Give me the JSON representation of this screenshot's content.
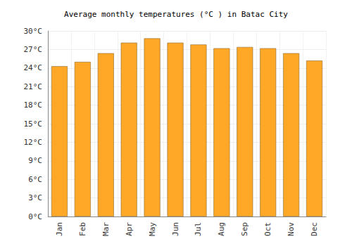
{
  "chart_data": {
    "type": "bar",
    "title": "Average monthly temperatures (°C ) in Batac City",
    "categories": [
      "Jan",
      "Feb",
      "Mar",
      "Apr",
      "May",
      "Jun",
      "Jul",
      "Aug",
      "Sep",
      "Oct",
      "Nov",
      "Dec"
    ],
    "values": [
      24.3,
      25.0,
      26.4,
      28.1,
      28.8,
      28.1,
      27.8,
      27.2,
      27.4,
      27.2,
      26.4,
      25.2
    ],
    "color": "#ffa726",
    "ylim": [
      0,
      30
    ],
    "yticks": [
      {
        "value": 0,
        "label": "0°C"
      },
      {
        "value": 3,
        "label": "3°C"
      },
      {
        "value": 6,
        "label": "6°C"
      },
      {
        "value": 9,
        "label": "9°C"
      },
      {
        "value": 12,
        "label": "12°C"
      },
      {
        "value": 15,
        "label": "15°C"
      },
      {
        "value": 18,
        "label": "18°C"
      },
      {
        "value": 21,
        "label": "21°C"
      },
      {
        "value": 24,
        "label": "24°C"
      },
      {
        "value": 27,
        "label": "27°C"
      },
      {
        "value": 30,
        "label": "30°C"
      }
    ],
    "grid": true
  }
}
